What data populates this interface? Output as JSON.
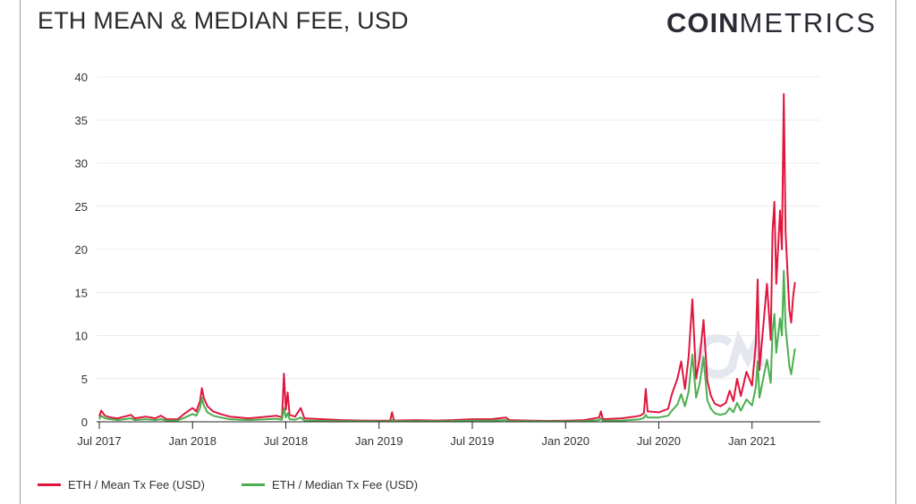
{
  "title": "ETH MEAN & MEDIAN FEE, USD",
  "brand": {
    "bold": "COIN",
    "light": "METRICS"
  },
  "colors": {
    "mean": "#e0163f",
    "median": "#4cae4f",
    "grid": "#ececec",
    "axis": "#222222"
  },
  "legend": [
    {
      "label": "ETH / Mean Tx Fee (USD)",
      "color": "#e0163f"
    },
    {
      "label": "ETH / Median Tx Fee (USD)",
      "color": "#4cae4f"
    }
  ],
  "chart_data": {
    "type": "line",
    "title": "ETH MEAN & MEDIAN FEE, USD",
    "xlabel": "",
    "ylabel": "",
    "ylim": [
      0,
      40
    ],
    "xlim": [
      2017.5,
      2021.27
    ],
    "y_ticks": [
      "0",
      "5",
      "10",
      "15",
      "20",
      "25",
      "30",
      "35",
      "40"
    ],
    "x_ticks": [
      {
        "t": 2017.5,
        "label": "Jul 2017"
      },
      {
        "t": 2018.0,
        "label": "Jan 2018"
      },
      {
        "t": 2018.5,
        "label": "Jul 2018"
      },
      {
        "t": 2019.0,
        "label": "Jan 2019"
      },
      {
        "t": 2019.5,
        "label": "Jul 2019"
      },
      {
        "t": 2020.0,
        "label": "Jan 2020"
      },
      {
        "t": 2020.5,
        "label": "Jul 2020"
      },
      {
        "t": 2021.0,
        "label": "Jan 2021"
      }
    ],
    "grid": true,
    "legend_position": "bottom-left",
    "series": [
      {
        "name": "ETH / Mean Tx Fee (USD)",
        "color": "#e0163f",
        "points": [
          [
            2017.5,
            0.6
          ],
          [
            2017.51,
            1.3
          ],
          [
            2017.53,
            0.7
          ],
          [
            2017.56,
            0.5
          ],
          [
            2017.6,
            0.4
          ],
          [
            2017.67,
            0.8
          ],
          [
            2017.69,
            0.4
          ],
          [
            2017.75,
            0.6
          ],
          [
            2017.8,
            0.4
          ],
          [
            2017.83,
            0.7
          ],
          [
            2017.86,
            0.3
          ],
          [
            2017.92,
            0.3
          ],
          [
            2017.96,
            1.0
          ],
          [
            2018.0,
            1.6
          ],
          [
            2018.02,
            1.2
          ],
          [
            2018.04,
            2.4
          ],
          [
            2018.05,
            3.9
          ],
          [
            2018.06,
            2.8
          ],
          [
            2018.08,
            1.8
          ],
          [
            2018.11,
            1.2
          ],
          [
            2018.15,
            0.9
          ],
          [
            2018.2,
            0.6
          ],
          [
            2018.3,
            0.4
          ],
          [
            2018.4,
            0.6
          ],
          [
            2018.45,
            0.7
          ],
          [
            2018.48,
            0.5
          ],
          [
            2018.49,
            5.6
          ],
          [
            2018.5,
            1.4
          ],
          [
            2018.51,
            3.4
          ],
          [
            2018.52,
            0.8
          ],
          [
            2018.55,
            0.6
          ],
          [
            2018.58,
            1.6
          ],
          [
            2018.6,
            0.4
          ],
          [
            2018.7,
            0.3
          ],
          [
            2018.8,
            0.2
          ],
          [
            2018.9,
            0.15
          ],
          [
            2019.0,
            0.12
          ],
          [
            2019.06,
            0.15
          ],
          [
            2019.07,
            1.1
          ],
          [
            2019.08,
            0.15
          ],
          [
            2019.2,
            0.2
          ],
          [
            2019.3,
            0.15
          ],
          [
            2019.4,
            0.2
          ],
          [
            2019.5,
            0.3
          ],
          [
            2019.6,
            0.3
          ],
          [
            2019.68,
            0.5
          ],
          [
            2019.7,
            0.2
          ],
          [
            2019.8,
            0.15
          ],
          [
            2019.9,
            0.1
          ],
          [
            2020.0,
            0.12
          ],
          [
            2020.1,
            0.2
          ],
          [
            2020.18,
            0.5
          ],
          [
            2020.19,
            1.2
          ],
          [
            2020.2,
            0.3
          ],
          [
            2020.3,
            0.4
          ],
          [
            2020.37,
            0.6
          ],
          [
            2020.4,
            0.7
          ],
          [
            2020.42,
            1.0
          ],
          [
            2020.43,
            3.8
          ],
          [
            2020.44,
            1.2
          ],
          [
            2020.5,
            1.1
          ],
          [
            2020.55,
            1.5
          ],
          [
            2020.57,
            3.2
          ],
          [
            2020.6,
            5.0
          ],
          [
            2020.62,
            7.0
          ],
          [
            2020.64,
            3.8
          ],
          [
            2020.66,
            7.5
          ],
          [
            2020.68,
            14.2
          ],
          [
            2020.7,
            5.0
          ],
          [
            2020.72,
            7.5
          ],
          [
            2020.74,
            11.8
          ],
          [
            2020.76,
            4.8
          ],
          [
            2020.78,
            3.0
          ],
          [
            2020.8,
            2.1
          ],
          [
            2020.83,
            1.8
          ],
          [
            2020.86,
            2.2
          ],
          [
            2020.88,
            3.6
          ],
          [
            2020.9,
            2.4
          ],
          [
            2020.92,
            5.0
          ],
          [
            2020.94,
            3.0
          ],
          [
            2020.97,
            5.8
          ],
          [
            2021.0,
            4.2
          ],
          [
            2021.02,
            9.0
          ],
          [
            2021.03,
            16.5
          ],
          [
            2021.04,
            6.0
          ],
          [
            2021.06,
            11.0
          ],
          [
            2021.08,
            16.0
          ],
          [
            2021.1,
            9.5
          ],
          [
            2021.11,
            22.0
          ],
          [
            2021.12,
            25.5
          ],
          [
            2021.13,
            16.0
          ],
          [
            2021.15,
            24.5
          ],
          [
            2021.16,
            20.0
          ],
          [
            2021.17,
            38.0
          ],
          [
            2021.18,
            22.0
          ],
          [
            2021.2,
            13.0
          ],
          [
            2021.21,
            11.5
          ],
          [
            2021.22,
            14.5
          ],
          [
            2021.23,
            16.2
          ]
        ]
      },
      {
        "name": "ETH / Median Tx Fee (USD)",
        "color": "#4cae4f",
        "points": [
          [
            2017.5,
            0.3
          ],
          [
            2017.51,
            0.7
          ],
          [
            2017.53,
            0.4
          ],
          [
            2017.56,
            0.3
          ],
          [
            2017.6,
            0.2
          ],
          [
            2017.67,
            0.4
          ],
          [
            2017.69,
            0.2
          ],
          [
            2017.75,
            0.3
          ],
          [
            2017.8,
            0.2
          ],
          [
            2017.83,
            0.3
          ],
          [
            2017.86,
            0.15
          ],
          [
            2017.92,
            0.15
          ],
          [
            2017.96,
            0.5
          ],
          [
            2018.0,
            0.9
          ],
          [
            2018.02,
            0.7
          ],
          [
            2018.04,
            1.6
          ],
          [
            2018.05,
            2.8
          ],
          [
            2018.06,
            1.9
          ],
          [
            2018.08,
            1.1
          ],
          [
            2018.11,
            0.7
          ],
          [
            2018.15,
            0.5
          ],
          [
            2018.2,
            0.3
          ],
          [
            2018.3,
            0.2
          ],
          [
            2018.4,
            0.3
          ],
          [
            2018.45,
            0.35
          ],
          [
            2018.48,
            0.25
          ],
          [
            2018.49,
            1.6
          ],
          [
            2018.5,
            0.5
          ],
          [
            2018.51,
            1.0
          ],
          [
            2018.52,
            0.3
          ],
          [
            2018.55,
            0.25
          ],
          [
            2018.58,
            0.5
          ],
          [
            2018.6,
            0.15
          ],
          [
            2018.7,
            0.1
          ],
          [
            2018.8,
            0.08
          ],
          [
            2018.9,
            0.06
          ],
          [
            2019.0,
            0.05
          ],
          [
            2019.06,
            0.06
          ],
          [
            2019.07,
            0.2
          ],
          [
            2019.08,
            0.06
          ],
          [
            2019.2,
            0.08
          ],
          [
            2019.3,
            0.06
          ],
          [
            2019.4,
            0.08
          ],
          [
            2019.5,
            0.12
          ],
          [
            2019.6,
            0.12
          ],
          [
            2019.68,
            0.2
          ],
          [
            2019.7,
            0.08
          ],
          [
            2019.8,
            0.06
          ],
          [
            2019.9,
            0.05
          ],
          [
            2020.0,
            0.05
          ],
          [
            2020.1,
            0.08
          ],
          [
            2020.18,
            0.2
          ],
          [
            2020.19,
            0.4
          ],
          [
            2020.2,
            0.12
          ],
          [
            2020.3,
            0.15
          ],
          [
            2020.37,
            0.25
          ],
          [
            2020.4,
            0.3
          ],
          [
            2020.42,
            0.45
          ],
          [
            2020.43,
            0.8
          ],
          [
            2020.44,
            0.5
          ],
          [
            2020.5,
            0.5
          ],
          [
            2020.55,
            0.7
          ],
          [
            2020.57,
            1.3
          ],
          [
            2020.6,
            2.0
          ],
          [
            2020.62,
            3.2
          ],
          [
            2020.64,
            1.8
          ],
          [
            2020.66,
            3.5
          ],
          [
            2020.68,
            7.8
          ],
          [
            2020.7,
            2.8
          ],
          [
            2020.72,
            4.5
          ],
          [
            2020.74,
            7.5
          ],
          [
            2020.76,
            2.5
          ],
          [
            2020.78,
            1.5
          ],
          [
            2020.8,
            1.0
          ],
          [
            2020.83,
            0.8
          ],
          [
            2020.86,
            1.0
          ],
          [
            2020.88,
            1.6
          ],
          [
            2020.9,
            1.1
          ],
          [
            2020.92,
            2.2
          ],
          [
            2020.94,
            1.3
          ],
          [
            2020.97,
            2.6
          ],
          [
            2021.0,
            1.9
          ],
          [
            2021.02,
            4.0
          ],
          [
            2021.03,
            7.0
          ],
          [
            2021.04,
            2.8
          ],
          [
            2021.06,
            5.0
          ],
          [
            2021.08,
            7.2
          ],
          [
            2021.1,
            4.5
          ],
          [
            2021.11,
            10.5
          ],
          [
            2021.12,
            12.5
          ],
          [
            2021.13,
            8.0
          ],
          [
            2021.15,
            12.0
          ],
          [
            2021.16,
            10.0
          ],
          [
            2021.17,
            17.5
          ],
          [
            2021.18,
            11.0
          ],
          [
            2021.2,
            6.5
          ],
          [
            2021.21,
            5.5
          ],
          [
            2021.22,
            7.0
          ],
          [
            2021.23,
            8.5
          ]
        ]
      }
    ]
  }
}
